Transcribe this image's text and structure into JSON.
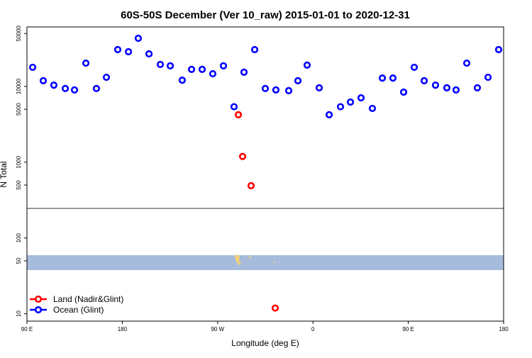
{
  "chart_data": {
    "type": "scatter",
    "title": "60S-50S December (Ver 10_raw)   2015-01-01 to 2020-12-31",
    "x_label": "Longitude (deg E)",
    "y_label": "N Total",
    "log_y": true,
    "legend": "bottom-left",
    "xlim": [
      -270,
      180
    ],
    "ylim": [
      8,
      61000
    ],
    "xticks": [
      {
        "value": -270,
        "label": "90 E"
      },
      {
        "value": -180,
        "label": "180"
      },
      {
        "value": -90,
        "label": "90 W"
      },
      0,
      {
        "value": 90,
        "label": "90 E"
      },
      180
    ],
    "yticks": [
      10,
      50,
      100,
      500,
      1000,
      5000,
      10000,
      50000
    ],
    "series": [
      {
        "name": "Land (Nadir&Glint)",
        "color": "#ff0000",
        "x": [
          -70.4,
          -66.4,
          -58.4,
          -35.6
        ],
        "values": [
          4230,
          1190,
          490,
          11.9
        ]
      },
      {
        "name": "Ocean (Glint)",
        "color": "#0000ff",
        "x": [
          -264.6,
          -254.6,
          -244.6,
          -233.8,
          -225.1,
          -214.4,
          -204.4,
          -195,
          -184.3,
          -174.2,
          -164.9,
          -154.8,
          -144.1,
          -134.7,
          -123.4,
          -114.6,
          -104.6,
          -94.6,
          -84.5,
          -74.5,
          -65.1,
          -55,
          -45,
          -35,
          -22.9,
          -14.2,
          -5.5,
          5.9,
          15.3,
          26,
          35.4,
          45.4,
          56.1,
          65.5,
          75.5,
          85.6,
          95.6,
          105,
          115.7,
          126.4,
          135.1,
          145.2,
          155.2,
          165.3,
          175.3
        ],
        "values": [
          17900,
          11900,
          10400,
          9400,
          9000,
          20300,
          9400,
          13200,
          30600,
          28700,
          43200,
          26900,
          19500,
          18700,
          12100,
          16800,
          16800,
          14700,
          18700,
          5400,
          15400,
          30600,
          9400,
          9000,
          8800,
          11900,
          19100,
          9600,
          4230,
          5400,
          6220,
          7080,
          5130,
          12900,
          12900,
          8410,
          17900,
          11900,
          10400,
          9600,
          9000,
          20300,
          9600,
          13200,
          30600
        ]
      }
    ]
  }
}
